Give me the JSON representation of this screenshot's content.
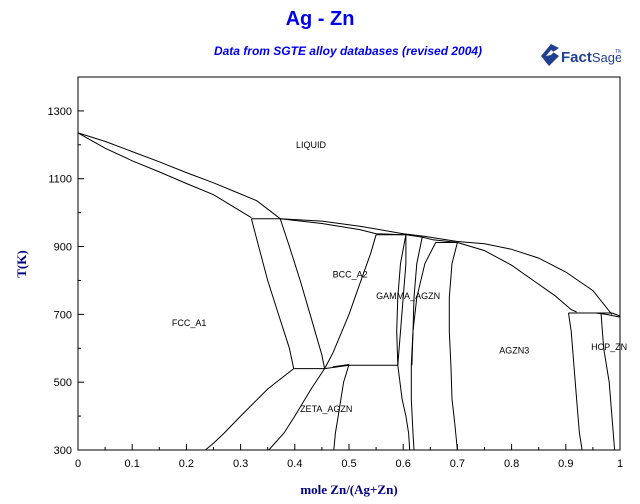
{
  "chart_data": {
    "type": "line",
    "title": "Ag - Zn",
    "subtitle": "Data from SGTE alloy databases (revised 2004)",
    "xlabel": "mole Zn/(Ag+Zn)",
    "ylabel": "T(K)",
    "xlim": [
      0,
      1
    ],
    "ylim": [
      300,
      1400
    ],
    "xticks": [
      0,
      0.1,
      0.2,
      0.3,
      0.4,
      0.5,
      0.6,
      0.7,
      0.8,
      0.9,
      1
    ],
    "xtick_labels": [
      "0",
      "0.1",
      "0.2",
      "0.3",
      "0.4",
      "0.5",
      "0.6",
      "0.7",
      "0.8",
      "0.9",
      "1"
    ],
    "yticks": [
      300,
      500,
      700,
      900,
      1100,
      1300
    ],
    "ytick_labels": [
      "300",
      "500",
      "700",
      "900",
      "1100",
      "1300"
    ],
    "grid": false,
    "regions": [
      {
        "label": "LIQUID",
        "x": 0.43,
        "y": 1190
      },
      {
        "label": "FCC_A1",
        "x": 0.205,
        "y": 665
      },
      {
        "label": "BCC_A2",
        "x": 0.502,
        "y": 808
      },
      {
        "label": "GAMMA_AGZN",
        "x": 0.609,
        "y": 745
      },
      {
        "label": "AGZN3",
        "x": 0.805,
        "y": 585
      },
      {
        "label": "HCP_ZN",
        "x": 0.98,
        "y": 595
      },
      {
        "label": "ZETA_AGZN",
        "x": 0.458,
        "y": 412
      }
    ],
    "lines": [
      {
        "name": "liquidus-fcc",
        "points": [
          [
            0,
            1235
          ],
          [
            0.05,
            1210
          ],
          [
            0.1,
            1180
          ],
          [
            0.15,
            1150
          ],
          [
            0.2,
            1118
          ],
          [
            0.25,
            1088
          ],
          [
            0.3,
            1055
          ],
          [
            0.33,
            1035
          ],
          [
            0.373,
            982
          ]
        ]
      },
      {
        "name": "solidus-fcc",
        "points": [
          [
            0,
            1235
          ],
          [
            0.05,
            1190
          ],
          [
            0.1,
            1153
          ],
          [
            0.15,
            1120
          ],
          [
            0.2,
            1086
          ],
          [
            0.25,
            1053
          ],
          [
            0.32,
            985
          ]
        ]
      },
      {
        "name": "peritectic-982",
        "points": [
          [
            0.32,
            982
          ],
          [
            0.373,
            982
          ]
        ]
      },
      {
        "name": "liquidus-bcc-gamma-agzn3",
        "points": [
          [
            0.373,
            982
          ],
          [
            0.45,
            975
          ],
          [
            0.52,
            960
          ],
          [
            0.6,
            938
          ],
          [
            0.64,
            930
          ],
          [
            0.7,
            915
          ],
          [
            0.75,
            908
          ],
          [
            0.8,
            892
          ],
          [
            0.85,
            866
          ],
          [
            0.9,
            825
          ],
          [
            0.95,
            770
          ],
          [
            0.985,
            700
          ]
        ]
      },
      {
        "name": "solidus-bcc",
        "points": [
          [
            0.373,
            982
          ],
          [
            0.45,
            968
          ],
          [
            0.52,
            950
          ],
          [
            0.55,
            938
          ],
          [
            0.6,
            935
          ]
        ]
      },
      {
        "name": "peritectic-935",
        "points": [
          [
            0.55,
            935
          ],
          [
            0.605,
            935
          ]
        ]
      },
      {
        "name": "gamma-liquid-solidus",
        "points": [
          [
            0.605,
            935
          ],
          [
            0.635,
            928
          ],
          [
            0.655,
            920
          ],
          [
            0.7,
            912
          ]
        ]
      },
      {
        "name": "peritectic-912",
        "points": [
          [
            0.66,
            912
          ],
          [
            0.7,
            912
          ]
        ]
      },
      {
        "name": "agzn3-liquid-solidus",
        "points": [
          [
            0.7,
            912
          ],
          [
            0.75,
            888
          ],
          [
            0.8,
            845
          ],
          [
            0.84,
            800
          ],
          [
            0.88,
            755
          ],
          [
            0.91,
            714
          ],
          [
            0.92,
            707
          ]
        ]
      },
      {
        "name": "peritectic-704",
        "points": [
          [
            0.905,
            704
          ],
          [
            0.985,
            704
          ]
        ]
      },
      {
        "name": "hcp-solidus",
        "points": [
          [
            0.985,
            704
          ],
          [
            0.995,
            698
          ],
          [
            1,
            695
          ]
        ]
      },
      {
        "name": "liquidus-hcp",
        "points": [
          [
            0.955,
            704
          ],
          [
            0.975,
            700
          ],
          [
            1,
            692
          ]
        ]
      },
      {
        "name": "fcc-bcc-left",
        "points": [
          [
            0.32,
            982
          ],
          [
            0.33,
            920
          ],
          [
            0.35,
            800
          ],
          [
            0.37,
            700
          ],
          [
            0.39,
            600
          ],
          [
            0.398,
            540
          ]
        ]
      },
      {
        "name": "fcc-bcc-right",
        "points": [
          [
            0.373,
            982
          ],
          [
            0.39,
            900
          ],
          [
            0.41,
            800
          ],
          [
            0.43,
            690
          ],
          [
            0.45,
            580
          ],
          [
            0.455,
            540
          ]
        ]
      },
      {
        "name": "eutectoid-540",
        "points": [
          [
            0.398,
            540
          ],
          [
            0.455,
            540
          ]
        ]
      },
      {
        "name": "fcc-zeta-boundary",
        "points": [
          [
            0.398,
            540
          ],
          [
            0.35,
            480
          ],
          [
            0.3,
            400
          ],
          [
            0.27,
            350
          ],
          [
            0.25,
            320
          ],
          [
            0.235,
            300
          ]
        ]
      },
      {
        "name": "bcc-gamma-left",
        "points": [
          [
            0.455,
            540
          ],
          [
            0.47,
            585
          ],
          [
            0.5,
            700
          ],
          [
            0.52,
            790
          ],
          [
            0.54,
            880
          ],
          [
            0.55,
            935
          ]
        ]
      },
      {
        "name": "zeta-lower-left",
        "points": [
          [
            0.455,
            540
          ],
          [
            0.43,
            480
          ],
          [
            0.4,
            400
          ],
          [
            0.38,
            350
          ],
          [
            0.352,
            300
          ]
        ]
      },
      {
        "name": "zeta-top",
        "points": [
          [
            0.455,
            540
          ],
          [
            0.5,
            550
          ],
          [
            0.59,
            550
          ]
        ]
      },
      {
        "name": "zeta-right",
        "points": [
          [
            0.47,
            545
          ],
          [
            0.5,
            552
          ]
        ]
      },
      {
        "name": "zeta-lower-right",
        "points": [
          [
            0.5,
            552
          ],
          [
            0.49,
            500
          ],
          [
            0.485,
            450
          ],
          [
            0.48,
            400
          ],
          [
            0.475,
            350
          ],
          [
            0.472,
            300
          ]
        ]
      },
      {
        "name": "bcc-gamma-right",
        "points": [
          [
            0.59,
            550
          ],
          [
            0.595,
            650
          ],
          [
            0.6,
            750
          ],
          [
            0.605,
            850
          ],
          [
            0.605,
            935
          ]
        ]
      },
      {
        "name": "gamma-left-lower",
        "points": [
          [
            0.59,
            550
          ],
          [
            0.598,
            450
          ],
          [
            0.605,
            400
          ],
          [
            0.61,
            350
          ],
          [
            0.612,
            300
          ]
        ]
      },
      {
        "name": "gamma-right-upper",
        "points": [
          [
            0.66,
            912
          ],
          [
            0.64,
            850
          ],
          [
            0.625,
            750
          ],
          [
            0.618,
            650
          ],
          [
            0.615,
            550
          ],
          [
            0.615,
            450
          ],
          [
            0.618,
            350
          ],
          [
            0.62,
            300
          ]
        ]
      },
      {
        "name": "gamma-left-upper",
        "points": [
          [
            0.605,
            935
          ],
          [
            0.595,
            850
          ],
          [
            0.59,
            750
          ],
          [
            0.588,
            650
          ],
          [
            0.59,
            550
          ]
        ]
      },
      {
        "name": "gamma-agzn3-left",
        "points": [
          [
            0.635,
            928
          ],
          [
            0.625,
            850
          ],
          [
            0.62,
            750
          ],
          [
            0.618,
            650
          ],
          [
            0.616,
            550
          ]
        ]
      },
      {
        "name": "agzn3-left",
        "points": [
          [
            0.7,
            912
          ],
          [
            0.69,
            850
          ],
          [
            0.685,
            750
          ],
          [
            0.685,
            650
          ],
          [
            0.688,
            550
          ],
          [
            0.69,
            450
          ],
          [
            0.695,
            380
          ],
          [
            0.7,
            300
          ]
        ]
      },
      {
        "name": "agzn3-right",
        "points": [
          [
            0.905,
            704
          ],
          [
            0.91,
            650
          ],
          [
            0.915,
            550
          ],
          [
            0.92,
            450
          ],
          [
            0.925,
            350
          ],
          [
            0.93,
            300
          ]
        ]
      },
      {
        "name": "hcp-left",
        "points": [
          [
            0.965,
            704
          ],
          [
            0.97,
            600
          ],
          [
            0.98,
            500
          ],
          [
            0.985,
            400
          ],
          [
            0.99,
            300
          ]
        ]
      }
    ]
  }
}
